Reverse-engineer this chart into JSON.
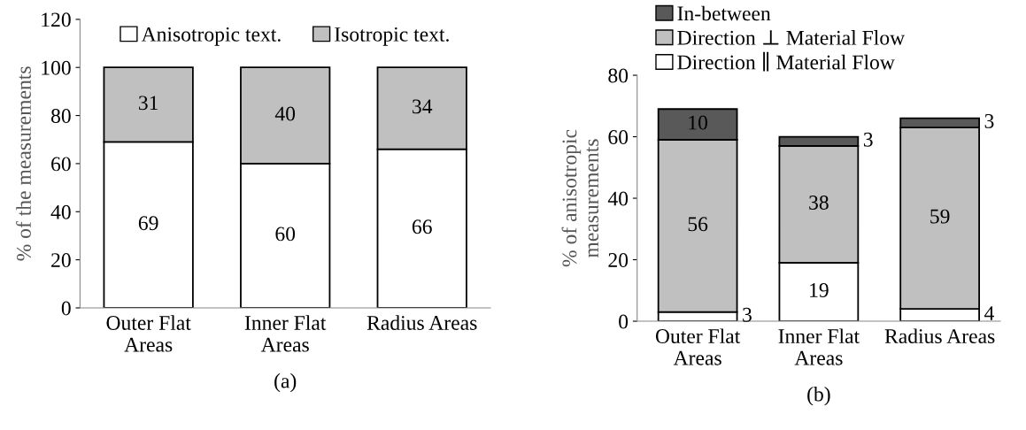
{
  "chart_data": [
    {
      "type": "bar",
      "stacked": true,
      "xlabel": "(a)",
      "ylabel": "% of the measurements",
      "categories": [
        "Outer Flat\nAreas",
        "Inner Flat\nAreas",
        "Radius Areas"
      ],
      "ylim": [
        0,
        120
      ],
      "yticks": [
        0,
        20,
        40,
        60,
        80,
        100,
        120
      ],
      "grid": false,
      "legend": "top",
      "data_labels": true,
      "series": [
        {
          "name": "Anisotropic text.",
          "color": "#ffffff",
          "values": [
            69,
            60,
            66
          ]
        },
        {
          "name": "Isotropic text.",
          "color": "#c0c0c0",
          "values": [
            31,
            40,
            34
          ]
        }
      ]
    },
    {
      "type": "bar",
      "stacked": true,
      "xlabel": "(b)",
      "ylabel": "% of anisotropic\nmeasurements",
      "categories": [
        "Outer Flat\nAreas",
        "Inner Flat\nAreas",
        "Radius Areas"
      ],
      "ylim": [
        0,
        80
      ],
      "yticks": [
        0,
        20,
        40,
        60,
        80
      ],
      "grid": false,
      "legend": "top left",
      "data_labels": true,
      "series": [
        {
          "name": "Direction ∥ Material Flow",
          "color": "#ffffff",
          "values": [
            3,
            19,
            4
          ]
        },
        {
          "name": "Direction ⊥ Material Flow",
          "color": "#c0c0c0",
          "values": [
            56,
            38,
            59
          ]
        },
        {
          "name": "In-between",
          "color": "#595959",
          "values": [
            10,
            3,
            3
          ]
        }
      ]
    }
  ]
}
